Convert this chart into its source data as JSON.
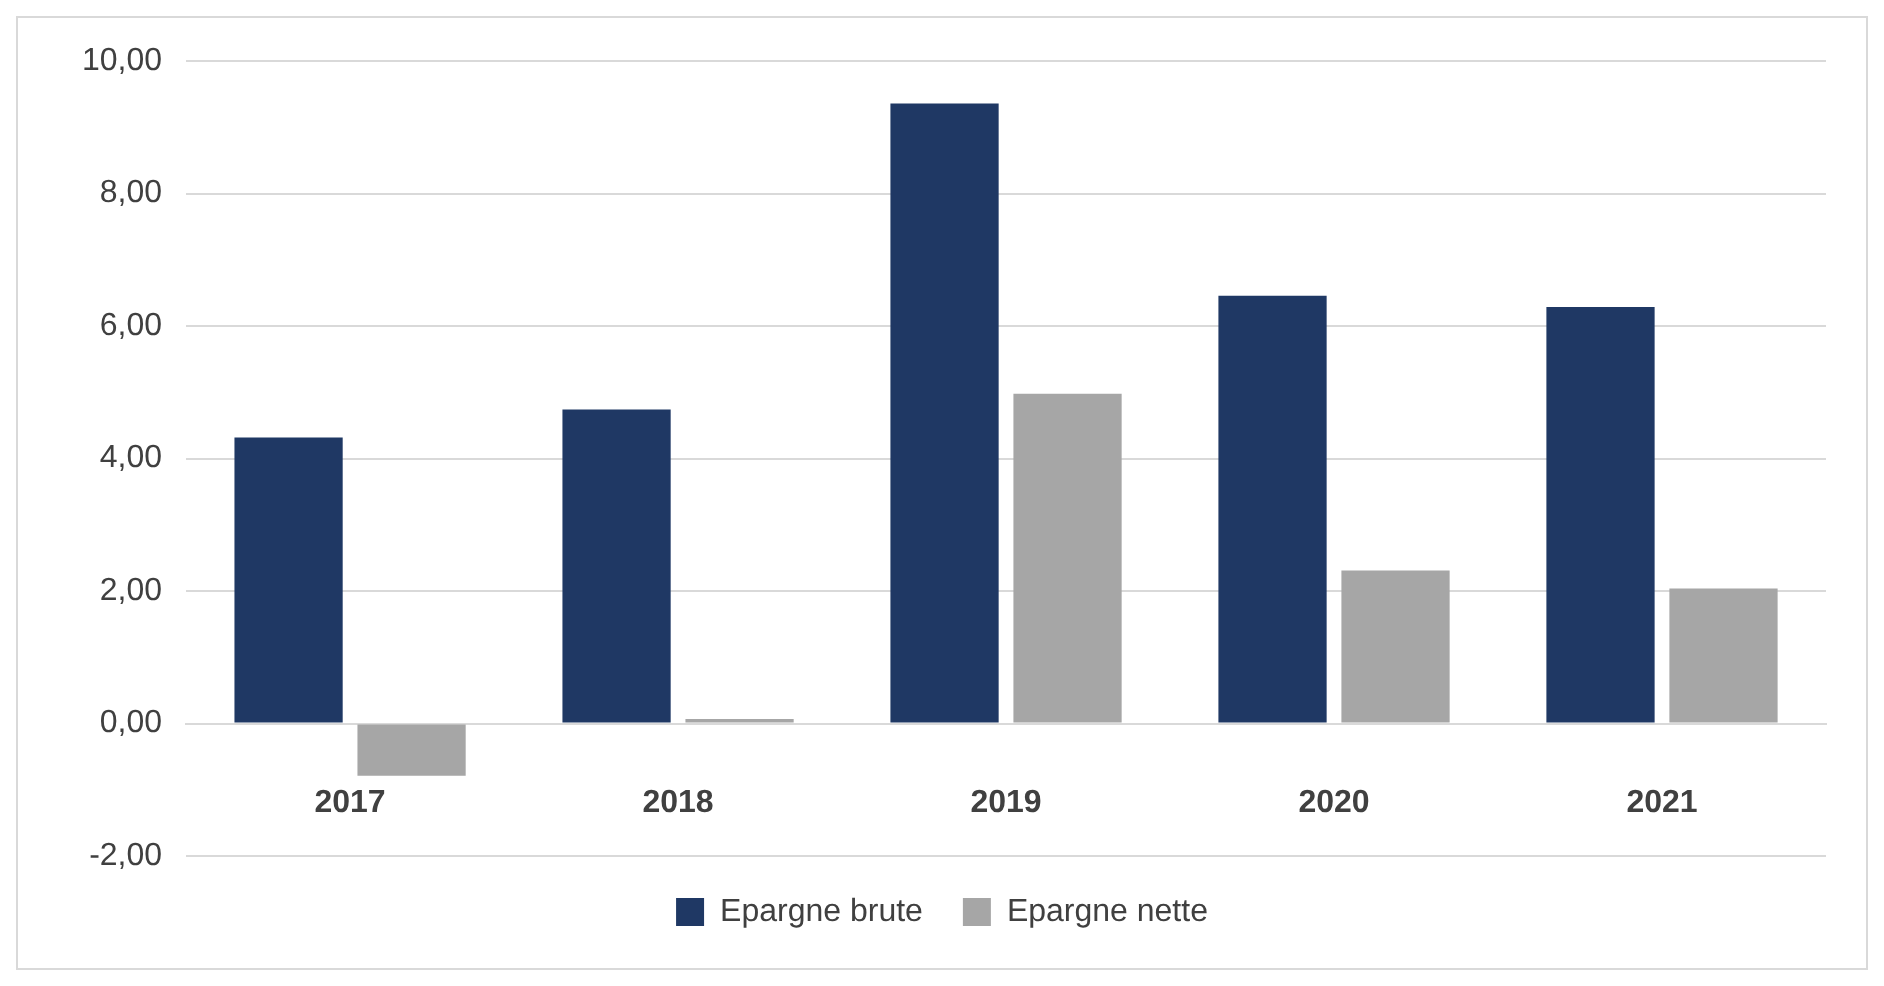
{
  "chart_data": {
    "type": "bar",
    "categories": [
      "2017",
      "2018",
      "2019",
      "2020",
      "2021"
    ],
    "series": [
      {
        "name": "Epargne brute",
        "color": "#1f3864",
        "values": [
          4.32,
          4.74,
          9.36,
          6.46,
          6.29
        ]
      },
      {
        "name": "Epargne nette",
        "color": "#a6a6a6",
        "values": [
          -0.79,
          0.07,
          4.98,
          2.31,
          2.04
        ]
      }
    ],
    "ylim": [
      -2,
      10
    ],
    "yticks": [
      {
        "value": -2,
        "label": "-2,00"
      },
      {
        "value": 0,
        "label": "0,00"
      },
      {
        "value": 2,
        "label": "2,00"
      },
      {
        "value": 4,
        "label": "4,00"
      },
      {
        "value": 6,
        "label": "6,00"
      },
      {
        "value": 8,
        "label": "8,00"
      },
      {
        "value": 10,
        "label": "10,00"
      }
    ],
    "grid": "y",
    "legend": "bottom"
  }
}
